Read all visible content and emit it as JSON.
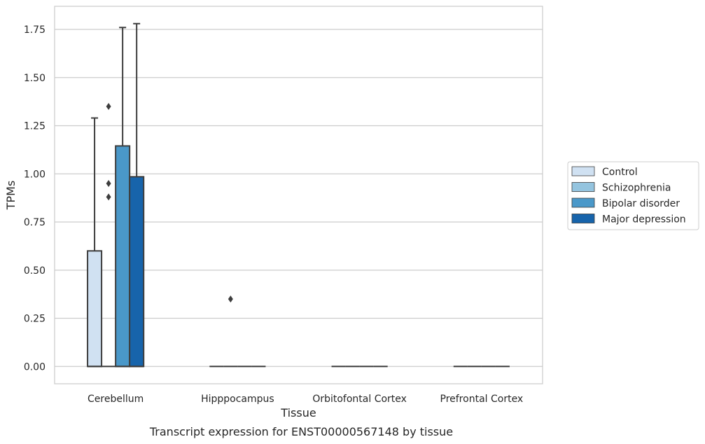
{
  "chart_data": {
    "type": "box",
    "xlabel": "Tissue",
    "ylabel": "TPMs",
    "caption": "Transcript expression for ENST00000567148 by tissue",
    "ylim": [
      -0.09,
      1.87
    ],
    "yticks": [
      0.0,
      0.25,
      0.5,
      0.75,
      1.0,
      1.25,
      1.5,
      1.75
    ],
    "ytick_labels": [
      "0.00",
      "0.25",
      "0.50",
      "0.75",
      "1.00",
      "1.25",
      "1.50",
      "1.75"
    ],
    "categories": [
      "Cerebellum",
      "Hipppocampus",
      "Orbitofontal Cortex",
      "Prefrontal Cortex"
    ],
    "grid": "horizontal",
    "legend_position": "right",
    "series": [
      {
        "name": "Control",
        "color": "#d0e1f2",
        "boxes": [
          {
            "q1": 0,
            "median": 0,
            "q3": 0.6,
            "whisker_low": 0,
            "whisker_high": 1.29,
            "outliers": []
          },
          {
            "q1": 0,
            "median": 0,
            "q3": 0,
            "whisker_low": 0,
            "whisker_high": 0,
            "outliers": []
          },
          {
            "q1": 0,
            "median": 0,
            "q3": 0,
            "whisker_low": 0,
            "whisker_high": 0,
            "outliers": []
          },
          {
            "q1": 0,
            "median": 0,
            "q3": 0,
            "whisker_low": 0,
            "whisker_high": 0,
            "outliers": []
          }
        ]
      },
      {
        "name": "Schizophrenia",
        "color": "#94c4df",
        "boxes": [
          {
            "q1": 0,
            "median": 0,
            "q3": 0,
            "whisker_low": 0,
            "whisker_high": 0,
            "outliers": [
              0.88,
              0.95,
              1.35
            ]
          },
          {
            "q1": 0,
            "median": 0,
            "q3": 0,
            "whisker_low": 0,
            "whisker_high": 0,
            "outliers": [
              0.35
            ]
          },
          {
            "q1": 0,
            "median": 0,
            "q3": 0,
            "whisker_low": 0,
            "whisker_high": 0,
            "outliers": []
          },
          {
            "q1": 0,
            "median": 0,
            "q3": 0,
            "whisker_low": 0,
            "whisker_high": 0,
            "outliers": []
          }
        ]
      },
      {
        "name": "Bipolar disorder",
        "color": "#4a98c9",
        "boxes": [
          {
            "q1": 0,
            "median": 0,
            "q3": 1.145,
            "whisker_low": 0,
            "whisker_high": 1.76,
            "outliers": []
          },
          {
            "q1": 0,
            "median": 0,
            "q3": 0,
            "whisker_low": 0,
            "whisker_high": 0,
            "outliers": []
          },
          {
            "q1": 0,
            "median": 0,
            "q3": 0,
            "whisker_low": 0,
            "whisker_high": 0,
            "outliers": []
          },
          {
            "q1": 0,
            "median": 0,
            "q3": 0,
            "whisker_low": 0,
            "whisker_high": 0,
            "outliers": []
          }
        ]
      },
      {
        "name": "Major depression",
        "color": "#1764ab",
        "boxes": [
          {
            "q1": 0,
            "median": 0,
            "q3": 0.985,
            "whisker_low": 0,
            "whisker_high": 1.78,
            "outliers": []
          },
          {
            "q1": 0,
            "median": 0,
            "q3": 0,
            "whisker_low": 0,
            "whisker_high": 0,
            "outliers": []
          },
          {
            "q1": 0,
            "median": 0,
            "q3": 0,
            "whisker_low": 0,
            "whisker_high": 0,
            "outliers": []
          },
          {
            "q1": 0,
            "median": 0,
            "q3": 0,
            "whisker_low": 0,
            "whisker_high": 0,
            "outliers": []
          }
        ]
      }
    ]
  }
}
